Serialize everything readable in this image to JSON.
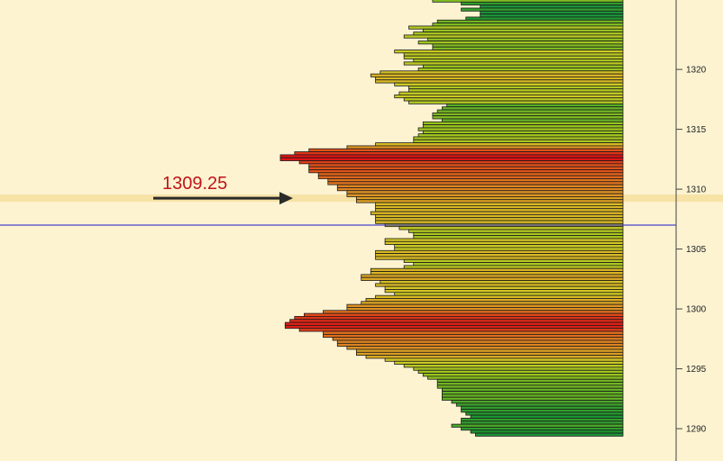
{
  "chart_data": {
    "type": "bar",
    "orientation": "horizontal",
    "title": "",
    "xlabel": "",
    "ylabel": "",
    "ylim": [
      1287.3,
      1325.8
    ],
    "price_step": 0.25,
    "y_ticks": [
      1290,
      1295,
      1300,
      1305,
      1310,
      1315,
      1320
    ],
    "y_tick_labels": [
      "1290",
      "1295",
      "1300",
      "1305",
      "1310",
      "1315",
      "1320"
    ],
    "horizontal_line_price": 1307.0,
    "highlight_price": 1309.25,
    "annotation": {
      "text": "1309.25",
      "price": 1309.25
    },
    "grid": false,
    "legend": "none",
    "colors": {
      "background": "#fdf3d1",
      "highlight_band": "#f7e3a6",
      "hline": "#1a1acd",
      "arrow": "#2b2b2b",
      "annotation_text": "#c0141a",
      "bar_border": "#1b1b1b",
      "axis": "#444444"
    },
    "series": [
      {
        "top_price": 1325.75,
        "values": [
          40,
          34,
          30,
          34,
          30,
          30,
          33,
          39,
          40,
          45,
          42,
          44,
          46,
          41,
          43,
          40,
          40,
          48,
          46,
          46,
          44,
          46,
          42,
          43,
          51,
          53,
          52,
          52,
          48,
          45,
          45,
          47,
          48,
          46,
          45,
          37,
          38,
          39,
          40,
          40,
          38,
          42,
          42,
          43,
          42,
          43,
          44,
          44,
          52,
          58,
          66,
          69,
          72,
          72,
          68,
          66,
          66,
          66,
          64,
          64,
          62,
          62,
          60,
          60,
          58,
          58,
          56,
          56,
          52,
          52,
          52,
          53,
          52,
          52,
          52,
          50,
          47,
          45,
          44,
          44,
          50,
          50,
          48,
          48,
          52,
          52,
          52,
          46,
          44,
          46,
          53,
          53,
          55,
          55,
          51,
          52,
          50,
          50,
          48,
          52,
          54,
          55,
          58,
          58,
          63,
          67,
          69,
          70,
          71,
          71,
          68,
          63,
          63,
          61,
          60,
          60,
          58,
          56,
          56,
          54,
          50,
          48,
          46,
          44,
          43,
          42,
          41,
          39,
          39,
          39,
          38,
          38,
          38,
          38,
          36,
          35,
          34,
          34,
          33,
          32,
          34,
          34,
          36,
          34,
          32,
          31
        ]
      }
    ]
  }
}
